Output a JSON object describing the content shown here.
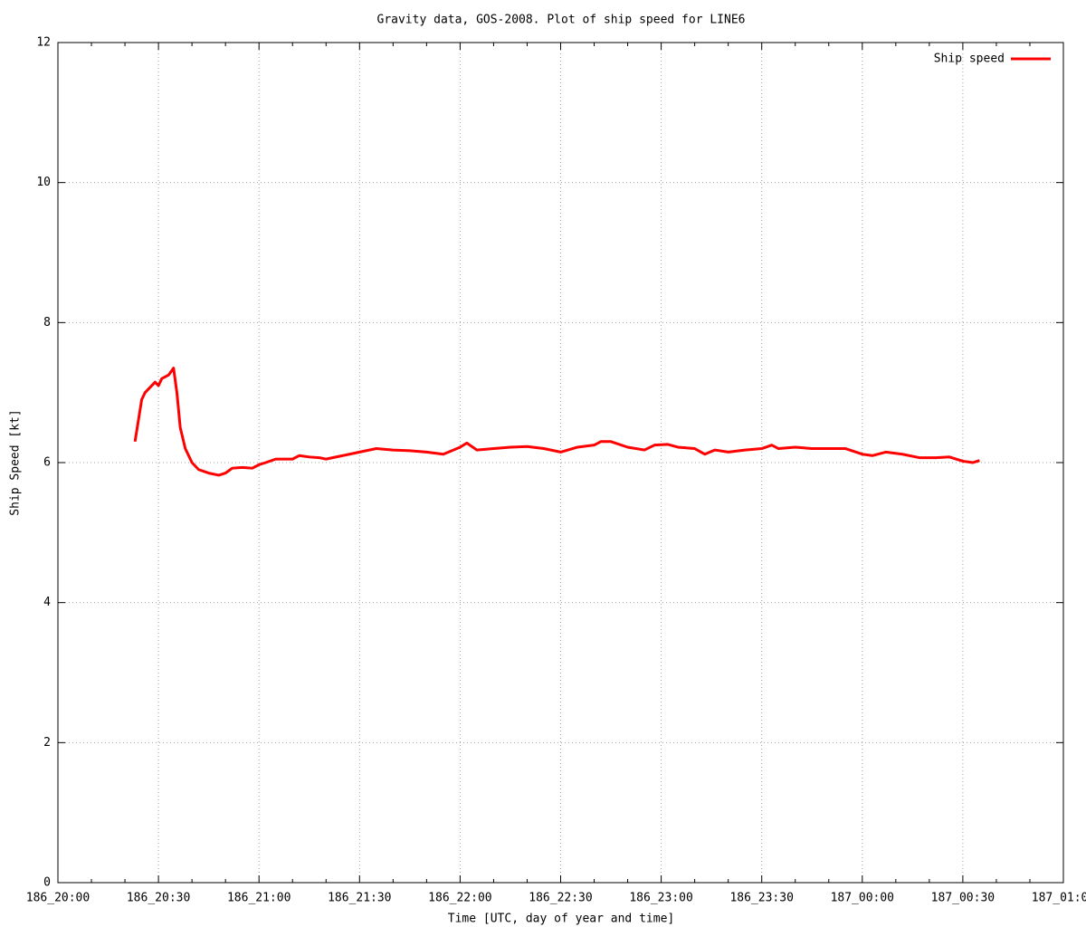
{
  "chart_data": {
    "type": "line",
    "title": "Gravity data, GOS-2008. Plot of ship speed for LINE6",
    "x_label": "Time [UTC, day of year and time]",
    "y_label": "Ship Speed [kt]",
    "xlim": [
      0,
      300
    ],
    "xticks": [
      {
        "value": 0,
        "label": "186_20:00"
      },
      {
        "value": 30,
        "label": "186_20:30"
      },
      {
        "value": 60,
        "label": "186_21:00"
      },
      {
        "value": 90,
        "label": "186_21:30"
      },
      {
        "value": 120,
        "label": "186_22:00"
      },
      {
        "value": 150,
        "label": "186_22:30"
      },
      {
        "value": 180,
        "label": "186_23:00"
      },
      {
        "value": 210,
        "label": "186_23:30"
      },
      {
        "value": 240,
        "label": "187_00:00"
      },
      {
        "value": 270,
        "label": "187_00:30"
      },
      {
        "value": 300,
        "label": "187_01:00"
      }
    ],
    "ylim": [
      0,
      12
    ],
    "yticks": [
      0,
      2,
      4,
      6,
      8,
      10,
      12
    ],
    "grid": true,
    "legend": "top-right",
    "x": [
      23,
      24,
      25,
      26,
      28,
      29,
      30,
      31,
      33,
      34.5,
      35.5,
      36.5,
      38,
      40,
      42,
      45,
      48,
      50,
      52,
      55,
      58,
      60,
      62,
      65,
      70,
      72,
      75,
      78,
      80,
      85,
      90,
      95,
      100,
      105,
      110,
      115,
      118,
      120,
      122,
      125,
      130,
      135,
      140,
      145,
      150,
      155,
      160,
      162,
      165,
      170,
      175,
      178,
      182,
      185,
      190,
      193,
      196,
      200,
      205,
      210,
      213,
      215,
      220,
      225,
      230,
      235,
      240,
      243,
      247,
      252,
      257,
      262,
      266,
      270,
      273,
      275
    ],
    "series": [
      {
        "name": "Ship speed",
        "color": "#ff0000",
        "values": [
          6.3,
          6.6,
          6.9,
          7.0,
          7.1,
          7.15,
          7.1,
          7.2,
          7.25,
          7.35,
          7.0,
          6.5,
          6.2,
          6.0,
          5.9,
          5.85,
          5.82,
          5.85,
          5.92,
          5.93,
          5.92,
          5.97,
          6.0,
          6.05,
          6.05,
          6.1,
          6.08,
          6.07,
          6.05,
          6.1,
          6.15,
          6.2,
          6.18,
          6.17,
          6.15,
          6.12,
          6.18,
          6.22,
          6.28,
          6.18,
          6.2,
          6.22,
          6.23,
          6.2,
          6.15,
          6.22,
          6.25,
          6.3,
          6.3,
          6.22,
          6.18,
          6.25,
          6.26,
          6.22,
          6.2,
          6.12,
          6.18,
          6.15,
          6.18,
          6.2,
          6.25,
          6.2,
          6.22,
          6.2,
          6.2,
          6.2,
          6.12,
          6.1,
          6.15,
          6.12,
          6.07,
          6.07,
          6.08,
          6.02,
          6.0,
          6.03
        ]
      }
    ]
  }
}
